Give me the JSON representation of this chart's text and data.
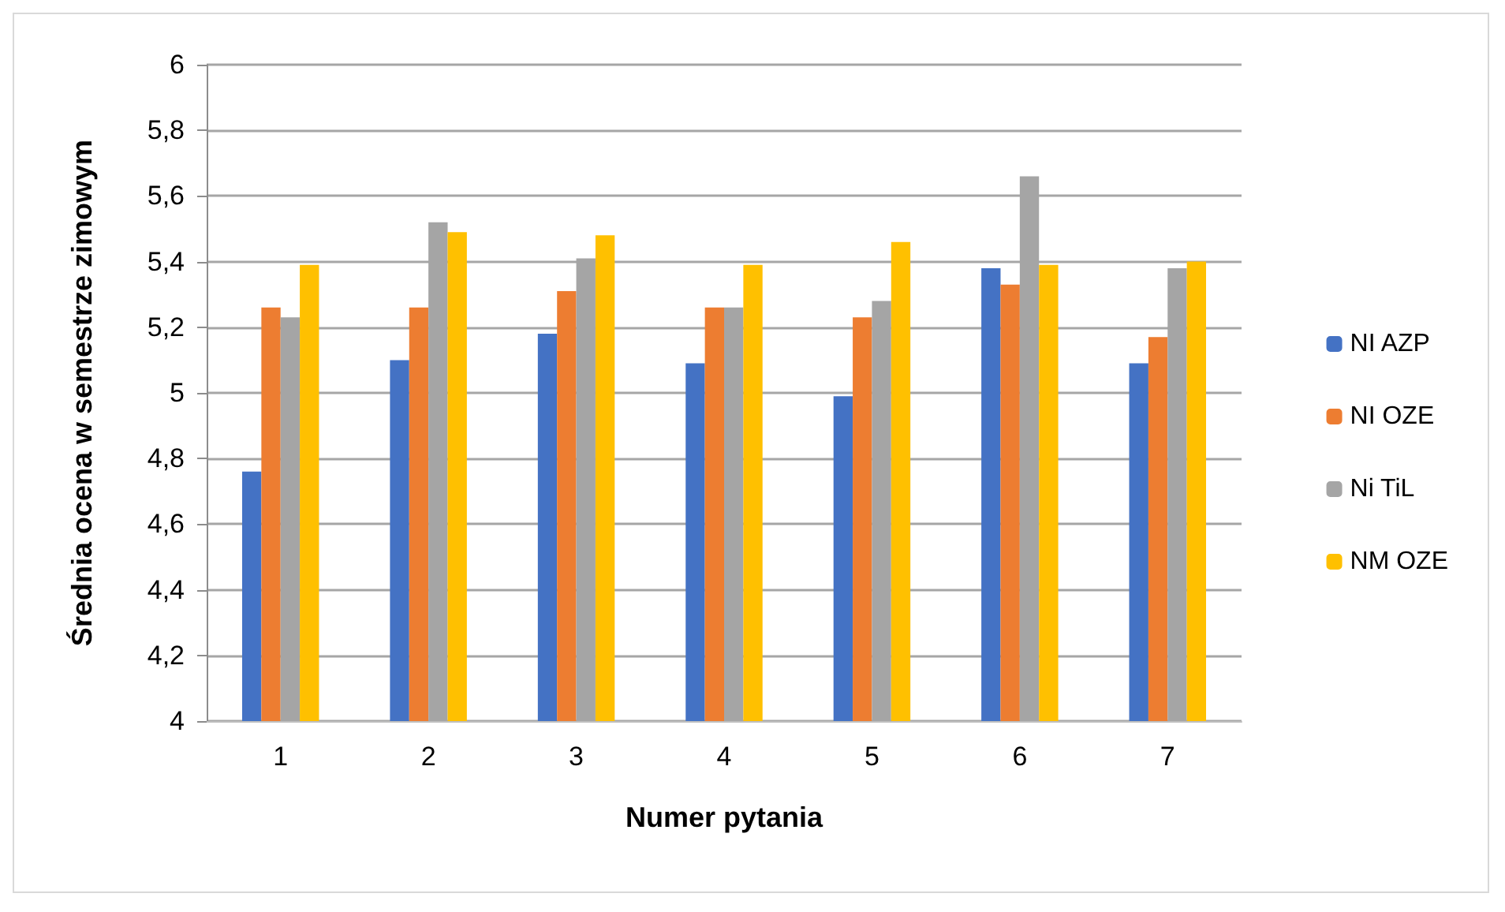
{
  "chart_data": {
    "type": "bar",
    "xlabel": "Numer pytania",
    "ylabel": "Średnia ocena w semestrze zimowym",
    "categories": [
      "1",
      "2",
      "3",
      "4",
      "5",
      "6",
      "7"
    ],
    "series": [
      {
        "name": "NI AZP",
        "color": "#4472c4",
        "values": [
          4.76,
          5.1,
          5.18,
          5.09,
          4.99,
          5.38,
          5.09
        ]
      },
      {
        "name": "NI OZE",
        "color": "#ed7d31",
        "values": [
          5.26,
          5.26,
          5.31,
          5.26,
          5.23,
          5.33,
          5.17
        ]
      },
      {
        "name": "Ni TiL",
        "color": "#a5a5a5",
        "values": [
          5.23,
          5.52,
          5.41,
          5.26,
          5.28,
          5.66,
          5.38
        ]
      },
      {
        "name": "NM OZE",
        "color": "#ffc000",
        "values": [
          5.39,
          5.49,
          5.48,
          5.39,
          5.46,
          5.39,
          5.4
        ]
      }
    ],
    "ylim": [
      4,
      6
    ],
    "yticks": [
      {
        "value": 4,
        "label": "4"
      },
      {
        "value": 4.2,
        "label": "4,2"
      },
      {
        "value": 4.4,
        "label": "4,4"
      },
      {
        "value": 4.6,
        "label": "4,6"
      },
      {
        "value": 4.8,
        "label": "4,8"
      },
      {
        "value": 5,
        "label": "5"
      },
      {
        "value": 5.2,
        "label": "5,2"
      },
      {
        "value": 5.4,
        "label": "5,4"
      },
      {
        "value": 5.6,
        "label": "5,6"
      },
      {
        "value": 5.8,
        "label": "5,8"
      },
      {
        "value": 6,
        "label": "6"
      }
    ],
    "grid": "y",
    "legend": "right"
  }
}
